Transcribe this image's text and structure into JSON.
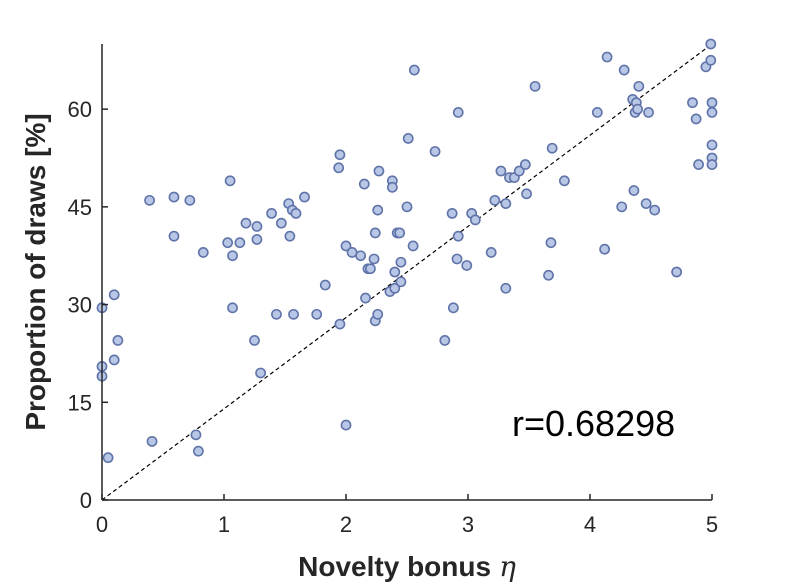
{
  "chart_data": {
    "type": "scatter",
    "xlabel": "Novelty bonus",
    "xlabel_symbol": "η",
    "ylabel": "Proportion of draws [%]",
    "xlim": [
      0,
      5
    ],
    "ylim": [
      0,
      70
    ],
    "xticks": [
      "0",
      "1",
      "2",
      "3",
      "4",
      "5"
    ],
    "yticks": [
      "0",
      "15",
      "30",
      "45",
      "60"
    ],
    "xtick_values": [
      0,
      1,
      2,
      3,
      4,
      5
    ],
    "ytick_values": [
      0,
      15,
      30,
      45,
      60
    ],
    "grid": false,
    "box": "left-bottom",
    "reference_line": {
      "style": "dashed",
      "from": [
        0,
        0
      ],
      "to": [
        5,
        70
      ]
    },
    "annotation": "r=0.68298",
    "colors": {
      "marker_fill": "#b8c7e6",
      "marker_edge": "#6073a8",
      "axis": "#262626",
      "reference_line": "#000000"
    },
    "points": [
      [
        0.0,
        29.5
      ],
      [
        0.0,
        20.5
      ],
      [
        0.0,
        19.0
      ],
      [
        0.05,
        6.5
      ],
      [
        0.1,
        21.5
      ],
      [
        0.1,
        31.5
      ],
      [
        0.13,
        24.5
      ],
      [
        0.39,
        46.0
      ],
      [
        0.41,
        9.0
      ],
      [
        0.59,
        46.5
      ],
      [
        0.59,
        40.5
      ],
      [
        0.72,
        46.0
      ],
      [
        0.77,
        10.0
      ],
      [
        0.79,
        7.5
      ],
      [
        0.83,
        38.0
      ],
      [
        1.03,
        39.5
      ],
      [
        1.05,
        49.0
      ],
      [
        1.07,
        37.5
      ],
      [
        1.07,
        29.5
      ],
      [
        1.13,
        39.5
      ],
      [
        1.18,
        42.5
      ],
      [
        1.25,
        24.5
      ],
      [
        1.27,
        42.0
      ],
      [
        1.27,
        40.0
      ],
      [
        1.3,
        19.5
      ],
      [
        1.39,
        44.0
      ],
      [
        1.43,
        28.5
      ],
      [
        1.47,
        42.5
      ],
      [
        1.53,
        45.5
      ],
      [
        1.54,
        40.5
      ],
      [
        1.56,
        44.5
      ],
      [
        1.57,
        28.5
      ],
      [
        1.59,
        44.0
      ],
      [
        1.66,
        46.5
      ],
      [
        1.76,
        28.5
      ],
      [
        1.83,
        33.0
      ],
      [
        1.94,
        51.0
      ],
      [
        1.95,
        27.0
      ],
      [
        1.95,
        53.0
      ],
      [
        2.0,
        39.0
      ],
      [
        2.0,
        11.5
      ],
      [
        2.05,
        38.0
      ],
      [
        2.12,
        37.5
      ],
      [
        2.15,
        48.5
      ],
      [
        2.16,
        31.0
      ],
      [
        2.18,
        35.5
      ],
      [
        2.2,
        35.5
      ],
      [
        2.23,
        37.0
      ],
      [
        2.24,
        27.5
      ],
      [
        2.24,
        41.0
      ],
      [
        2.26,
        44.5
      ],
      [
        2.26,
        28.5
      ],
      [
        2.27,
        50.5
      ],
      [
        2.36,
        32.0
      ],
      [
        2.38,
        49.0
      ],
      [
        2.38,
        48.0
      ],
      [
        2.4,
        32.5
      ],
      [
        2.4,
        35.0
      ],
      [
        2.42,
        41.0
      ],
      [
        2.44,
        41.0
      ],
      [
        2.45,
        33.5
      ],
      [
        2.45,
        36.5
      ],
      [
        2.5,
        45.0
      ],
      [
        2.51,
        55.5
      ],
      [
        2.55,
        39.0
      ],
      [
        2.56,
        66.0
      ],
      [
        2.73,
        53.5
      ],
      [
        2.81,
        24.5
      ],
      [
        2.87,
        44.0
      ],
      [
        2.88,
        29.5
      ],
      [
        2.91,
        37.0
      ],
      [
        2.92,
        40.5
      ],
      [
        2.92,
        59.5
      ],
      [
        2.99,
        36.0
      ],
      [
        3.03,
        44.0
      ],
      [
        3.06,
        43.0
      ],
      [
        3.19,
        38.0
      ],
      [
        3.22,
        46.0
      ],
      [
        3.27,
        50.5
      ],
      [
        3.31,
        45.5
      ],
      [
        3.31,
        32.5
      ],
      [
        3.34,
        49.5
      ],
      [
        3.38,
        49.5
      ],
      [
        3.42,
        50.5
      ],
      [
        3.47,
        51.5
      ],
      [
        3.48,
        47.0
      ],
      [
        3.55,
        63.5
      ],
      [
        3.66,
        34.5
      ],
      [
        3.68,
        39.5
      ],
      [
        3.69,
        54.0
      ],
      [
        3.79,
        49.0
      ],
      [
        4.06,
        59.5
      ],
      [
        4.12,
        38.5
      ],
      [
        4.14,
        68.0
      ],
      [
        4.26,
        45.0
      ],
      [
        4.28,
        66.0
      ],
      [
        4.35,
        61.5
      ],
      [
        4.36,
        47.5
      ],
      [
        4.37,
        59.5
      ],
      [
        4.38,
        61.0
      ],
      [
        4.39,
        60.0
      ],
      [
        4.4,
        63.5
      ],
      [
        4.46,
        45.5
      ],
      [
        4.48,
        59.5
      ],
      [
        4.53,
        44.5
      ],
      [
        4.71,
        35.0
      ],
      [
        4.84,
        61.0
      ],
      [
        4.87,
        58.5
      ],
      [
        4.89,
        51.5
      ],
      [
        4.95,
        66.5
      ],
      [
        4.99,
        70.0
      ],
      [
        4.99,
        67.5
      ],
      [
        5.0,
        61.0
      ],
      [
        5.0,
        59.5
      ],
      [
        5.0,
        54.5
      ],
      [
        5.0,
        52.5
      ],
      [
        5.0,
        51.5
      ]
    ]
  }
}
